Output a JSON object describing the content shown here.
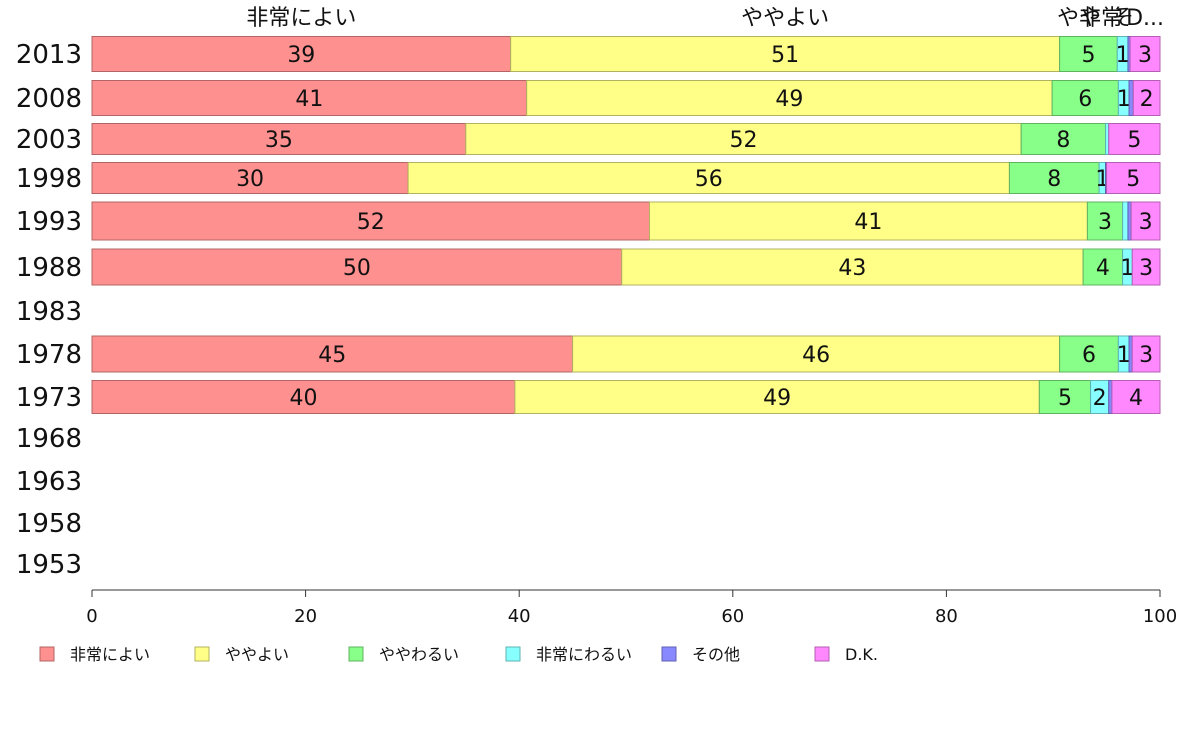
{
  "chart_data": {
    "type": "bar",
    "orientation": "horizontal",
    "stacked": true,
    "categories": [
      "2013",
      "2008",
      "2003",
      "1998",
      "1993",
      "1988",
      "1983",
      "1978",
      "1973",
      "1968",
      "1963",
      "1958",
      "1953"
    ],
    "series": [
      {
        "name": "非常によい",
        "color": "#ff9090",
        "values": [
          39.2,
          40.7,
          35.0,
          29.6,
          52.2,
          49.6,
          null,
          45.0,
          39.6,
          null,
          null,
          null,
          null
        ]
      },
      {
        "name": "ややよい",
        "color": "#ffff88",
        "values": [
          51.4,
          49.2,
          52.0,
          56.3,
          41.0,
          43.2,
          null,
          45.6,
          49.1,
          null,
          null,
          null,
          null
        ]
      },
      {
        "name": "ややわるい",
        "color": "#88ff88",
        "values": [
          5.4,
          6.2,
          7.9,
          8.4,
          3.3,
          3.7,
          null,
          5.5,
          4.8,
          null,
          null,
          null,
          null
        ]
      },
      {
        "name": "非常にわるい",
        "color": "#88ffff",
        "values": [
          1.0,
          1.0,
          0.3,
          0.6,
          0.5,
          0.9,
          null,
          1.0,
          1.7,
          null,
          null,
          null,
          null
        ]
      },
      {
        "name": "その他",
        "color": "#8888ff",
        "values": [
          0.2,
          0.4,
          0.0,
          0.1,
          0.3,
          0.0,
          null,
          0.3,
          0.3,
          null,
          null,
          null,
          null
        ]
      },
      {
        "name": "D.K.",
        "color": "#ff88ff",
        "values": [
          2.8,
          2.5,
          4.8,
          5.0,
          2.7,
          2.6,
          null,
          2.6,
          4.5,
          null,
          null,
          null,
          null
        ]
      }
    ],
    "data_labels": [
      [
        "39",
        "51",
        "5",
        "1",
        "",
        "3"
      ],
      [
        "41",
        "49",
        "6",
        "1",
        "",
        "2"
      ],
      [
        "35",
        "52",
        "8",
        "",
        "",
        "5"
      ],
      [
        "30",
        "56",
        "8",
        "1",
        "",
        "5"
      ],
      [
        "52",
        "41",
        "3",
        "",
        "",
        "3"
      ],
      [
        "50",
        "43",
        "4",
        "1",
        "",
        "3"
      ],
      [
        "",
        "",
        "",
        "",
        "",
        ""
      ],
      [
        "45",
        "46",
        "6",
        "1",
        "",
        "3"
      ],
      [
        "40",
        "49",
        "5",
        "2",
        "",
        "4"
      ],
      [
        "",
        "",
        "",
        "",
        "",
        ""
      ],
      [
        "",
        "",
        "",
        "",
        "",
        ""
      ],
      [
        "",
        "",
        "",
        "",
        "",
        ""
      ],
      [
        "",
        "",
        "",
        "",
        "",
        ""
      ]
    ],
    "column_headers": [
      "非常によい",
      "ややよい",
      "やや",
      "非常",
      "そ",
      "D..."
    ],
    "xlim": [
      0,
      100
    ],
    "xticks": [
      "0",
      "20",
      "40",
      "60",
      "80",
      "100"
    ],
    "grid": false,
    "legend_position": "bottom"
  }
}
